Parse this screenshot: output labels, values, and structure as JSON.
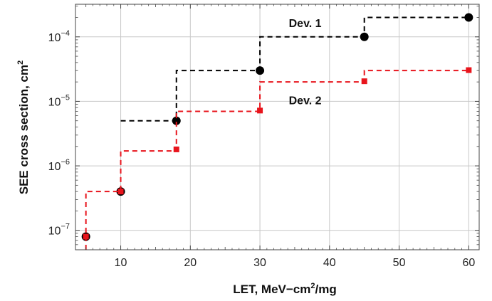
{
  "chart_data": {
    "type": "line",
    "title": "",
    "xlabel": {
      "main": "LET, MeV−cm",
      "sup": "2",
      "tail": "/mg"
    },
    "ylabel": {
      "main": "SEE cross section, cm",
      "sup": "2"
    },
    "xlim": [
      3.5,
      61.5
    ],
    "ylim": [
      5e-08,
      0.00032
    ],
    "y_scale": "log",
    "grid": true,
    "x_ticks": [
      {
        "value": 10,
        "label": "10"
      },
      {
        "value": 20,
        "label": "20"
      },
      {
        "value": 30,
        "label": "30"
      },
      {
        "value": 40,
        "label": "40"
      },
      {
        "value": 50,
        "label": "50"
      },
      {
        "value": 60,
        "label": "60"
      }
    ],
    "y_ticks": [
      {
        "value": 1e-07,
        "base": "10",
        "exp": "−7"
      },
      {
        "value": 1e-06,
        "base": "10",
        "exp": "−6"
      },
      {
        "value": 1e-05,
        "base": "10",
        "exp": "−5"
      },
      {
        "value": 0.0001,
        "base": "10",
        "exp": "−4"
      }
    ],
    "series": [
      {
        "name": "Dev. 1",
        "color": "#000000",
        "marker": "circle",
        "points": [
          {
            "x": 5,
            "y": 8e-08
          },
          {
            "x": 10,
            "y": 4e-07
          },
          {
            "x": 18,
            "y": 5e-06
          },
          {
            "x": 30,
            "y": 3e-05
          },
          {
            "x": 45,
            "y": 0.0001
          },
          {
            "x": 60,
            "y": 0.0002
          }
        ],
        "step": [
          {
            "x": 10,
            "y": 5e-06
          },
          {
            "x": 18,
            "y": 3e-05
          },
          {
            "x": 30,
            "y": 0.0001
          },
          {
            "x": 45,
            "y": 0.0002
          },
          {
            "x": 60,
            "y": 0.0002
          }
        ]
      },
      {
        "name": "Dev. 2",
        "color": "#e8141c",
        "marker": "square",
        "points": [
          {
            "x": 5,
            "y": 8e-08
          },
          {
            "x": 10,
            "y": 4e-07
          },
          {
            "x": 18,
            "y": 1.8e-06
          },
          {
            "x": 30,
            "y": 7.2e-06
          },
          {
            "x": 45,
            "y": 2.05e-05
          },
          {
            "x": 60,
            "y": 3.05e-05
          }
        ],
        "step": [
          {
            "x": 5,
            "y": 5e-08
          },
          {
            "x": 5,
            "y": 4e-07
          },
          {
            "x": 10,
            "y": 1.7e-06
          },
          {
            "x": 18,
            "y": 7e-06
          },
          {
            "x": 30,
            "y": 2e-05
          },
          {
            "x": 45,
            "y": 3e-05
          },
          {
            "x": 60,
            "y": 3e-05
          }
        ]
      }
    ],
    "annotations": [
      {
        "text": "Dev. 1",
        "x": 36.5,
        "y": 0.000165
      },
      {
        "text": "Dev. 2",
        "x": 36.5,
        "y": 1.05e-05
      }
    ]
  }
}
